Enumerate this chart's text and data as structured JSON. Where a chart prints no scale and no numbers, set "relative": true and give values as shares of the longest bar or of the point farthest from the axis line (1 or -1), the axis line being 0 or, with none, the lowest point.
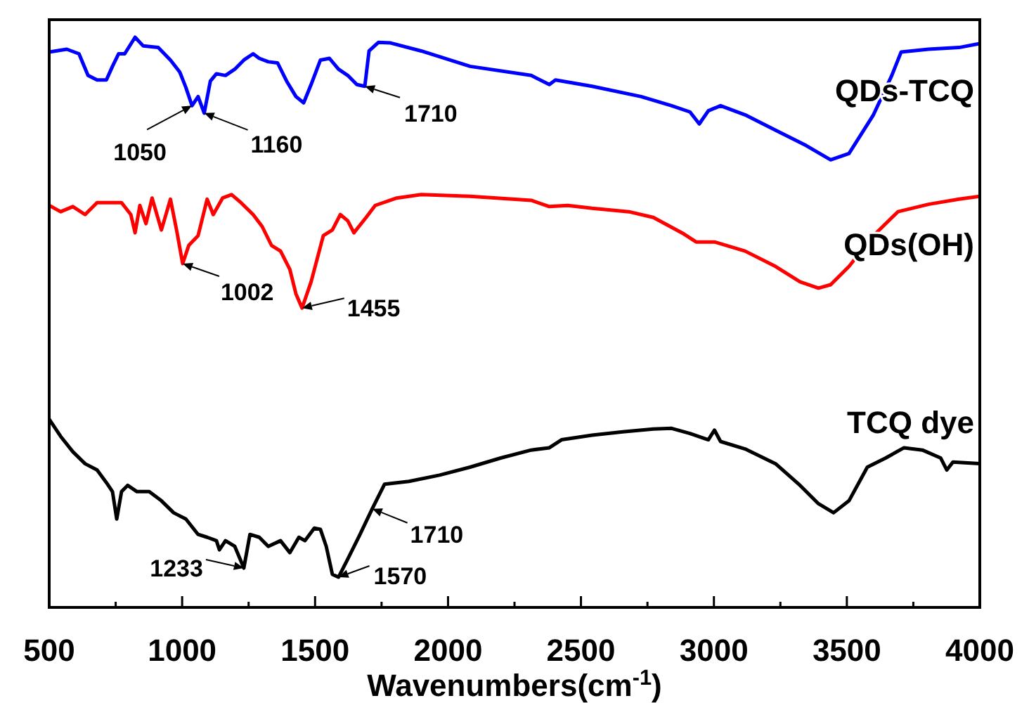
{
  "chart_data": {
    "type": "line",
    "relative": true,
    "xlabel": "Wavenumbers(cm$^{-1}$)",
    "xlim": [
      500,
      4000
    ],
    "xticks": [
      500,
      {
        "value": 750,
        "label": null
      },
      1000,
      {
        "value": 1250,
        "label": null
      },
      1500,
      {
        "value": 1750,
        "label": null
      },
      2000,
      {
        "value": 2250,
        "label": null
      },
      2500,
      {
        "value": 2750,
        "label": null
      },
      3000,
      {
        "value": 3250,
        "label": null
      },
      3500,
      {
        "value": 3750,
        "label": null
      },
      4000
    ],
    "series": [
      {
        "name": "QDs-TCQ",
        "color": "#0000ff",
        "x": [
          500,
          566,
          612,
          646,
          680,
          715,
          738,
          761,
          784,
          823,
          853,
          910,
          956,
          991,
          1014,
          1037,
          1060,
          1083,
          1106,
          1129,
          1163,
          1198,
          1232,
          1267,
          1290,
          1324,
          1359,
          1393,
          1428,
          1457,
          1485,
          1520,
          1554,
          1588,
          1623,
          1657,
          1687,
          1703,
          1738,
          1784,
          1899,
          2083,
          2313,
          2381,
          2404,
          2542,
          2726,
          2841,
          2910,
          2945,
          2979,
          3025,
          3117,
          3232,
          3347,
          3439,
          3508,
          3600,
          3669,
          3704,
          3807,
          3922,
          4000
        ],
        "values": [
          0.974,
          0.979,
          0.971,
          0.933,
          0.925,
          0.925,
          0.949,
          0.971,
          0.971,
          1.0,
          0.985,
          0.982,
          0.96,
          0.939,
          0.912,
          0.88,
          0.896,
          0.867,
          0.923,
          0.936,
          0.933,
          0.944,
          0.96,
          0.971,
          0.963,
          0.957,
          0.955,
          0.923,
          0.896,
          0.885,
          0.917,
          0.96,
          0.963,
          0.944,
          0.933,
          0.917,
          0.914,
          0.976,
          0.991,
          0.99,
          0.976,
          0.949,
          0.933,
          0.917,
          0.925,
          0.914,
          0.896,
          0.88,
          0.869,
          0.848,
          0.871,
          0.88,
          0.864,
          0.837,
          0.81,
          0.785,
          0.796,
          0.864,
          0.933,
          0.974,
          0.979,
          0.982,
          0.989
        ]
      },
      {
        "name": "QDs(OH)",
        "color": "#ff0000",
        "x": [
          500,
          543,
          589,
          635,
          680,
          772,
          807,
          823,
          841,
          864,
          887,
          922,
          956,
          979,
          1002,
          1025,
          1060,
          1094,
          1117,
          1152,
          1186,
          1221,
          1267,
          1301,
          1336,
          1370,
          1405,
          1428,
          1451,
          1485,
          1531,
          1565,
          1595,
          1623,
          1646,
          1692,
          1726,
          1807,
          1899,
          2083,
          2313,
          2381,
          2450,
          2542,
          2680,
          2772,
          2887,
          2933,
          3002,
          3117,
          3232,
          3324,
          3393,
          3439,
          3508,
          3600,
          3692,
          3807,
          3922,
          4000
        ],
        "values": [
          0.705,
          0.694,
          0.703,
          0.689,
          0.71,
          0.71,
          0.689,
          0.657,
          0.705,
          0.673,
          0.718,
          0.662,
          0.716,
          0.662,
          0.603,
          0.635,
          0.652,
          0.716,
          0.689,
          0.718,
          0.724,
          0.71,
          0.689,
          0.668,
          0.635,
          0.625,
          0.593,
          0.55,
          0.525,
          0.571,
          0.652,
          0.662,
          0.689,
          0.678,
          0.657,
          0.684,
          0.705,
          0.718,
          0.724,
          0.721,
          0.714,
          0.703,
          0.705,
          0.7,
          0.694,
          0.684,
          0.655,
          0.641,
          0.641,
          0.625,
          0.598,
          0.571,
          0.56,
          0.566,
          0.598,
          0.652,
          0.694,
          0.707,
          0.716,
          0.721
        ]
      },
      {
        "name": "TCQ dye",
        "color": "#000000",
        "x": [
          500,
          543,
          589,
          635,
          680,
          715,
          738,
          754,
          772,
          795,
          830,
          876,
          922,
          968,
          1014,
          1060,
          1094,
          1129,
          1140,
          1163,
          1198,
          1232,
          1255,
          1290,
          1324,
          1370,
          1405,
          1439,
          1462,
          1497,
          1520,
          1542,
          1565,
          1588,
          1623,
          1669,
          1715,
          1761,
          1853,
          1968,
          2083,
          2198,
          2313,
          2381,
          2427,
          2542,
          2657,
          2772,
          2841,
          2910,
          2979,
          3002,
          3025,
          3117,
          3232,
          3324,
          3393,
          3450,
          3508,
          3577,
          3646,
          3715,
          3784,
          3853,
          3876,
          3899,
          4000
        ],
        "values": [
          0.33,
          0.3,
          0.273,
          0.252,
          0.241,
          0.219,
          0.203,
          0.155,
          0.203,
          0.214,
          0.203,
          0.203,
          0.187,
          0.166,
          0.155,
          0.128,
          0.123,
          0.117,
          0.101,
          0.117,
          0.107,
          0.069,
          0.128,
          0.123,
          0.107,
          0.117,
          0.096,
          0.123,
          0.117,
          0.139,
          0.137,
          0.107,
          0.058,
          0.053,
          0.085,
          0.128,
          0.173,
          0.216,
          0.221,
          0.232,
          0.246,
          0.262,
          0.276,
          0.28,
          0.294,
          0.302,
          0.308,
          0.313,
          0.314,
          0.305,
          0.294,
          0.311,
          0.291,
          0.278,
          0.252,
          0.214,
          0.182,
          0.166,
          0.187,
          0.246,
          0.262,
          0.28,
          0.276,
          0.262,
          0.241,
          0.255,
          0.252
        ]
      }
    ],
    "annotations": [
      {
        "text": "1050",
        "x": 1037,
        "y": 0.88
      },
      {
        "text": "1160",
        "x": 1083,
        "y": 0.867
      },
      {
        "text": "1710",
        "x": 1687,
        "y": 0.914
      },
      {
        "text": "1002",
        "x": 1002,
        "y": 0.603
      },
      {
        "text": "1455",
        "x": 1451,
        "y": 0.525
      },
      {
        "text": "1233",
        "x": 1232,
        "y": 0.069
      },
      {
        "text": "1570",
        "x": 1588,
        "y": 0.053
      },
      {
        "text": "1710",
        "x": 1715,
        "y": 0.173
      }
    ]
  }
}
